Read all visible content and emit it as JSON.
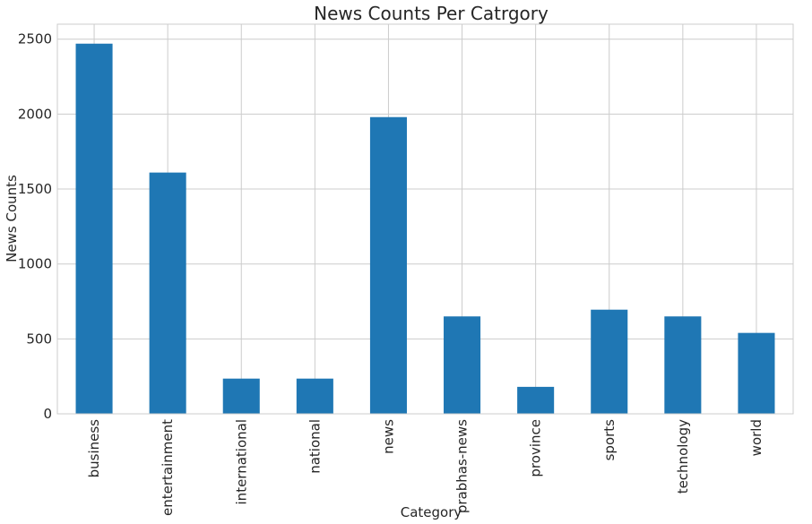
{
  "chart_data": {
    "type": "bar",
    "title": "News Counts Per Catrgory",
    "xlabel": "Category",
    "ylabel": "News Counts",
    "categories": [
      "business",
      "entertainment",
      "international",
      "national",
      "news",
      "prabhas-news",
      "province",
      "sports",
      "technology",
      "world"
    ],
    "values": [
      2470,
      1610,
      235,
      235,
      1980,
      650,
      180,
      695,
      650,
      540
    ],
    "ylim": [
      0,
      2600
    ],
    "yticks": [
      "0",
      "500",
      "1000",
      "1500",
      "2000",
      "2500"
    ],
    "grid": true,
    "bar_color": "#1f77b4"
  }
}
